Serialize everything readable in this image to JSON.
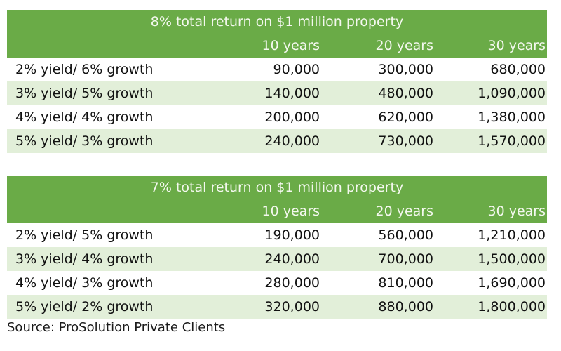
{
  "tables": [
    {
      "title": "8% total return on $1 million property",
      "columns": [
        "",
        "10 years",
        "20 years",
        "30 years"
      ],
      "rows": [
        {
          "label": "2% yield/ 6% growth",
          "values": [
            "90,000",
            "300,000",
            "680,000"
          ]
        },
        {
          "label": "3% yield/ 5% growth",
          "values": [
            "140,000",
            "480,000",
            "1,090,000"
          ]
        },
        {
          "label": "4% yield/ 4% growth",
          "values": [
            "200,000",
            "620,000",
            "1,380,000"
          ]
        },
        {
          "label": "5% yield/ 3% growth",
          "values": [
            "240,000",
            "730,000",
            "1,570,000"
          ]
        }
      ]
    },
    {
      "title": "7% total return on $1 million property",
      "columns": [
        "",
        "10 years",
        "20 years",
        "30 years"
      ],
      "rows": [
        {
          "label": "2% yield/ 5% growth",
          "values": [
            "190,000",
            "560,000",
            "1,210,000"
          ]
        },
        {
          "label": "3% yield/ 4% growth",
          "values": [
            "240,000",
            "700,000",
            "1,500,000"
          ]
        },
        {
          "label": "4% yield/ 3% growth",
          "values": [
            "280,000",
            "810,000",
            "1,690,000"
          ]
        },
        {
          "label": "5% yield/ 2% growth",
          "values": [
            "320,000",
            "880,000",
            "1,800,000"
          ]
        }
      ]
    }
  ],
  "source": "Source: ProSolution Private Clients",
  "colors": {
    "header_green": "#6aab47",
    "alt_row": "#e2efd9"
  }
}
